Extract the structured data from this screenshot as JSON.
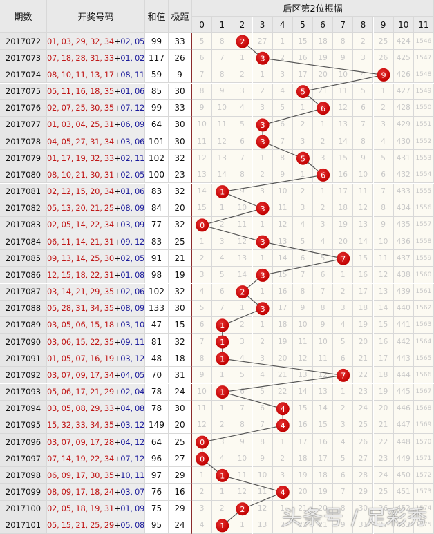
{
  "header": {
    "period": "期数",
    "numbers": "开奖号码",
    "sum": "和值",
    "span": "极距",
    "trend_title": "后区第2位振幅",
    "columns": [
      "0",
      "1",
      "2",
      "3",
      "4",
      "5",
      "6",
      "7",
      "8",
      "9",
      "10",
      "11"
    ]
  },
  "colors": {
    "front": "#c01818",
    "back": "#1c1c9c",
    "ball": "#c00000",
    "line": "#555555"
  },
  "rows": [
    {
      "period": "2017072",
      "front": "01, 03, 29, 32, 34",
      "back": "02, 05",
      "sum": "99",
      "span": "33",
      "hit": 2,
      "values": [
        5,
        8,
        2,
        27,
        1,
        15,
        18,
        8,
        2,
        25,
        424,
        1546
      ]
    },
    {
      "period": "2017073",
      "front": "07, 18, 28, 31, 33",
      "back": "01, 02",
      "sum": "117",
      "span": "26",
      "hit": 3,
      "values": [
        6,
        7,
        1,
        3,
        2,
        16,
        19,
        9,
        3,
        26,
        425,
        1547
      ]
    },
    {
      "period": "2017074",
      "front": "08, 10, 11, 13, 17",
      "back": "08, 11",
      "sum": "59",
      "span": "9",
      "hit": 9,
      "values": [
        7,
        8,
        2,
        1,
        3,
        17,
        20,
        10,
        4,
        9,
        426,
        1548
      ]
    },
    {
      "period": "2017075",
      "front": "05, 11, 16, 18, 35",
      "back": "01, 06",
      "sum": "85",
      "span": "30",
      "hit": 5,
      "values": [
        8,
        9,
        3,
        2,
        4,
        5,
        21,
        11,
        5,
        1,
        427,
        1549
      ]
    },
    {
      "period": "2017076",
      "front": "02, 07, 25, 30, 35",
      "back": "07, 12",
      "sum": "99",
      "span": "33",
      "hit": 6,
      "values": [
        9,
        10,
        4,
        3,
        5,
        1,
        6,
        12,
        6,
        2,
        428,
        1550
      ]
    },
    {
      "period": "2017077",
      "front": "01, 03, 04, 25, 31",
      "back": "06, 09",
      "sum": "64",
      "span": "30",
      "hit": 3,
      "values": [
        10,
        11,
        5,
        3,
        6,
        2,
        1,
        13,
        7,
        3,
        429,
        1551
      ]
    },
    {
      "period": "2017078",
      "front": "04, 05, 27, 31, 34",
      "back": "03, 06",
      "sum": "101",
      "span": "30",
      "hit": 3,
      "values": [
        11,
        12,
        6,
        3,
        7,
        3,
        2,
        14,
        8,
        4,
        430,
        1552
      ]
    },
    {
      "period": "2017079",
      "front": "01, 17, 19, 32, 33",
      "back": "02, 11",
      "sum": "102",
      "span": "32",
      "hit": 5,
      "values": [
        12,
        13,
        7,
        1,
        8,
        5,
        3,
        15,
        9,
        5,
        431,
        1553
      ]
    },
    {
      "period": "2017080",
      "front": "08, 10, 21, 30, 31",
      "back": "02, 05",
      "sum": "100",
      "span": "23",
      "hit": 6,
      "values": [
        13,
        14,
        8,
        2,
        9,
        1,
        6,
        16,
        10,
        6,
        432,
        1554
      ]
    },
    {
      "period": "2017081",
      "front": "02, 12, 15, 20, 34",
      "back": "01, 06",
      "sum": "83",
      "span": "32",
      "hit": 1,
      "values": [
        14,
        1,
        9,
        3,
        10,
        2,
        1,
        17,
        11,
        7,
        433,
        1555
      ]
    },
    {
      "period": "2017082",
      "front": "05, 13, 20, 21, 25",
      "back": "08, 09",
      "sum": "84",
      "span": "20",
      "hit": 3,
      "values": [
        15,
        1,
        10,
        3,
        11,
        3,
        2,
        18,
        12,
        8,
        434,
        1556
      ]
    },
    {
      "period": "2017083",
      "front": "02, 05, 14, 22, 34",
      "back": "03, 09",
      "sum": "77",
      "span": "32",
      "hit": 0,
      "values": [
        0,
        2,
        11,
        1,
        12,
        4,
        3,
        19,
        13,
        9,
        435,
        1557
      ]
    },
    {
      "period": "2017084",
      "front": "06, 11, 14, 21, 31",
      "back": "09, 12",
      "sum": "83",
      "span": "25",
      "hit": 3,
      "values": [
        1,
        3,
        12,
        3,
        13,
        5,
        4,
        20,
        14,
        10,
        436,
        1558
      ]
    },
    {
      "period": "2017085",
      "front": "09, 13, 14, 25, 30",
      "back": "02, 05",
      "sum": "91",
      "span": "21",
      "hit": 7,
      "values": [
        2,
        4,
        13,
        1,
        14,
        6,
        5,
        7,
        15,
        11,
        437,
        1559
      ]
    },
    {
      "period": "2017086",
      "front": "12, 15, 18, 22, 31",
      "back": "01, 08",
      "sum": "98",
      "span": "19",
      "hit": 3,
      "values": [
        3,
        5,
        14,
        3,
        15,
        7,
        6,
        1,
        16,
        12,
        438,
        1560
      ]
    },
    {
      "period": "2017087",
      "front": "03, 14, 21, 29, 35",
      "back": "02, 06",
      "sum": "102",
      "span": "32",
      "hit": 2,
      "values": [
        4,
        6,
        2,
        1,
        16,
        8,
        7,
        2,
        17,
        13,
        439,
        1561
      ]
    },
    {
      "period": "2017088",
      "front": "05, 28, 31, 34, 35",
      "back": "08, 09",
      "sum": "133",
      "span": "30",
      "hit": 3,
      "values": [
        5,
        7,
        1,
        3,
        17,
        9,
        8,
        3,
        18,
        14,
        440,
        1562
      ]
    },
    {
      "period": "2017089",
      "front": "03, 05, 06, 15, 18",
      "back": "03, 10",
      "sum": "47",
      "span": "15",
      "hit": 1,
      "values": [
        6,
        1,
        2,
        1,
        18,
        10,
        9,
        4,
        19,
        15,
        441,
        1563
      ]
    },
    {
      "period": "2017090",
      "front": "03, 06, 15, 22, 35",
      "back": "09, 11",
      "sum": "81",
      "span": "32",
      "hit": 1,
      "values": [
        7,
        1,
        3,
        2,
        19,
        11,
        10,
        5,
        20,
        16,
        442,
        1564
      ]
    },
    {
      "period": "2017091",
      "front": "01, 05, 07, 16, 19",
      "back": "03, 12",
      "sum": "48",
      "span": "18",
      "hit": 1,
      "values": [
        8,
        1,
        4,
        3,
        20,
        12,
        11,
        6,
        21,
        17,
        443,
        1565
      ]
    },
    {
      "period": "2017092",
      "front": "03, 07, 09, 17, 34",
      "back": "04, 05",
      "sum": "70",
      "span": "31",
      "hit": 7,
      "values": [
        9,
        1,
        5,
        4,
        21,
        13,
        12,
        7,
        22,
        18,
        444,
        1566
      ]
    },
    {
      "period": "2017093",
      "front": "05, 06, 17, 21, 29",
      "back": "02, 04",
      "sum": "78",
      "span": "24",
      "hit": 1,
      "values": [
        10,
        1,
        6,
        5,
        22,
        14,
        13,
        1,
        23,
        19,
        445,
        1567
      ]
    },
    {
      "period": "2017094",
      "front": "03, 05, 08, 29, 33",
      "back": "04, 08",
      "sum": "78",
      "span": "30",
      "hit": 4,
      "values": [
        11,
        1,
        7,
        6,
        4,
        15,
        14,
        2,
        24,
        20,
        446,
        1568
      ]
    },
    {
      "period": "2017095",
      "front": "15, 32, 33, 34, 35",
      "back": "03, 12",
      "sum": "149",
      "span": "20",
      "hit": 4,
      "values": [
        12,
        2,
        8,
        7,
        4,
        16,
        15,
        3,
        25,
        21,
        447,
        1569
      ]
    },
    {
      "period": "2017096",
      "front": "03, 07, 09, 17, 28",
      "back": "04, 12",
      "sum": "64",
      "span": "25",
      "hit": 0,
      "values": [
        0,
        3,
        9,
        8,
        1,
        17,
        16,
        4,
        26,
        22,
        448,
        1570
      ]
    },
    {
      "period": "2017097",
      "front": "07, 14, 19, 22, 34",
      "back": "07, 12",
      "sum": "96",
      "span": "27",
      "hit": 0,
      "values": [
        0,
        4,
        10,
        9,
        2,
        18,
        17,
        5,
        27,
        23,
        449,
        1571
      ]
    },
    {
      "period": "2017098",
      "front": "06, 09, 17, 30, 35",
      "back": "10, 11",
      "sum": "97",
      "span": "29",
      "hit": 1,
      "values": [
        1,
        1,
        11,
        10,
        3,
        19,
        18,
        6,
        28,
        24,
        450,
        1572
      ]
    },
    {
      "period": "2017099",
      "front": "08, 09, 17, 18, 24",
      "back": "03, 07",
      "sum": "76",
      "span": "16",
      "hit": 4,
      "values": [
        2,
        1,
        12,
        11,
        4,
        20,
        19,
        7,
        29,
        25,
        451,
        1573
      ]
    },
    {
      "period": "2017100",
      "front": "02, 05, 18, 19, 31",
      "back": "01, 09",
      "sum": "75",
      "span": "29",
      "hit": 2,
      "values": [
        3,
        2,
        2,
        12,
        1,
        21,
        20,
        8,
        30,
        26,
        452,
        1574
      ]
    },
    {
      "period": "2017101",
      "front": "05, 15, 21, 25, 29",
      "back": "05, 08",
      "sum": "95",
      "span": "24",
      "hit": 1,
      "values": [
        4,
        1,
        1,
        13,
        2,
        22,
        21,
        9,
        31,
        27,
        453,
        1575
      ]
    }
  ],
  "watermark": "头条号 / 足彩秀"
}
